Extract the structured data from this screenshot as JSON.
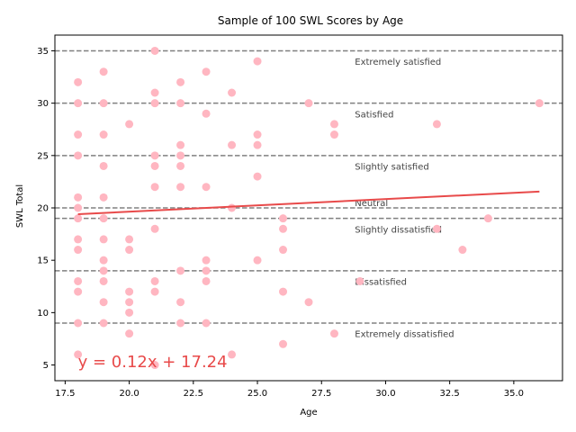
{
  "chart_data": {
    "type": "scatter",
    "title": "Sample of 100 SWL Scores by Age",
    "xlabel": "Age",
    "ylabel": "SWL Total",
    "xlim": [
      17.1,
      36.9
    ],
    "ylim": [
      3.5,
      36.5
    ],
    "xticks": [
      17.5,
      20.0,
      22.5,
      25.0,
      27.5,
      30.0,
      32.5,
      35.0
    ],
    "xtick_labels": [
      "17.5",
      "20.0",
      "22.5",
      "25.0",
      "27.5",
      "30.0",
      "32.5",
      "35.0"
    ],
    "yticks": [
      5,
      10,
      15,
      20,
      25,
      30,
      35
    ],
    "ytick_labels": [
      "5",
      "10",
      "15",
      "20",
      "25",
      "30",
      "35"
    ],
    "grid": false,
    "point_color": "#ffb6c1",
    "points": [
      [
        18,
        6
      ],
      [
        18,
        9
      ],
      [
        18,
        12
      ],
      [
        18,
        13
      ],
      [
        18,
        16
      ],
      [
        18,
        17
      ],
      [
        18,
        19
      ],
      [
        18,
        20
      ],
      [
        18,
        21
      ],
      [
        18,
        25
      ],
      [
        18,
        27
      ],
      [
        18,
        30
      ],
      [
        18,
        32
      ],
      [
        19,
        9
      ],
      [
        19,
        11
      ],
      [
        19,
        13
      ],
      [
        19,
        14
      ],
      [
        19,
        15
      ],
      [
        19,
        17
      ],
      [
        19,
        19
      ],
      [
        19,
        21
      ],
      [
        19,
        24
      ],
      [
        19,
        27
      ],
      [
        19,
        30
      ],
      [
        19,
        33
      ],
      [
        20,
        8
      ],
      [
        20,
        10
      ],
      [
        20,
        11
      ],
      [
        20,
        12
      ],
      [
        20,
        16
      ],
      [
        20,
        17
      ],
      [
        20,
        28
      ],
      [
        21,
        5
      ],
      [
        21,
        12
      ],
      [
        21,
        13
      ],
      [
        21,
        18
      ],
      [
        21,
        22
      ],
      [
        21,
        24
      ],
      [
        21,
        25
      ],
      [
        21,
        30
      ],
      [
        21,
        31
      ],
      [
        21,
        35
      ],
      [
        22,
        9
      ],
      [
        22,
        11
      ],
      [
        22,
        14
      ],
      [
        22,
        22
      ],
      [
        22,
        24
      ],
      [
        22,
        25
      ],
      [
        22,
        26
      ],
      [
        22,
        30
      ],
      [
        22,
        32
      ],
      [
        23,
        9
      ],
      [
        23,
        13
      ],
      [
        23,
        14
      ],
      [
        23,
        15
      ],
      [
        23,
        22
      ],
      [
        23,
        29
      ],
      [
        23,
        33
      ],
      [
        24,
        6
      ],
      [
        24,
        20
      ],
      [
        24,
        26
      ],
      [
        24,
        31
      ],
      [
        25,
        15
      ],
      [
        25,
        23
      ],
      [
        25,
        26
      ],
      [
        25,
        27
      ],
      [
        25,
        34
      ],
      [
        26,
        7
      ],
      [
        26,
        12
      ],
      [
        26,
        16
      ],
      [
        26,
        18
      ],
      [
        26,
        19
      ],
      [
        27,
        11
      ],
      [
        27,
        30
      ],
      [
        28,
        8
      ],
      [
        28,
        27
      ],
      [
        28,
        28
      ],
      [
        29,
        13
      ],
      [
        32,
        18
      ],
      [
        32,
        28
      ],
      [
        33,
        16
      ],
      [
        34,
        19
      ],
      [
        36,
        30
      ]
    ],
    "regression": {
      "slope": 0.12,
      "intercept": 17.24,
      "x_range": [
        18,
        36
      ],
      "color": "#e84a4a",
      "equation_label": "y = 0.12x + 17.24"
    },
    "reference_lines": {
      "values": [
        9,
        14,
        19,
        20,
        25,
        30,
        35
      ],
      "color": "#808080",
      "style": "dashed"
    },
    "band_labels": [
      {
        "text": "Extremely satisfied",
        "y": 34
      },
      {
        "text": "Satisfied",
        "y": 29
      },
      {
        "text": "Slightly satisfied",
        "y": 24
      },
      {
        "text": "Neutral",
        "y": 20.5
      },
      {
        "text": "Slightly dissatisfied",
        "y": 18
      },
      {
        "text": "Dissatisfied",
        "y": 13
      },
      {
        "text": "Extremely dissatisfied",
        "y": 8
      }
    ],
    "band_label_x": 28.8,
    "equation_position": {
      "x": 18,
      "y": 5.3
    }
  }
}
